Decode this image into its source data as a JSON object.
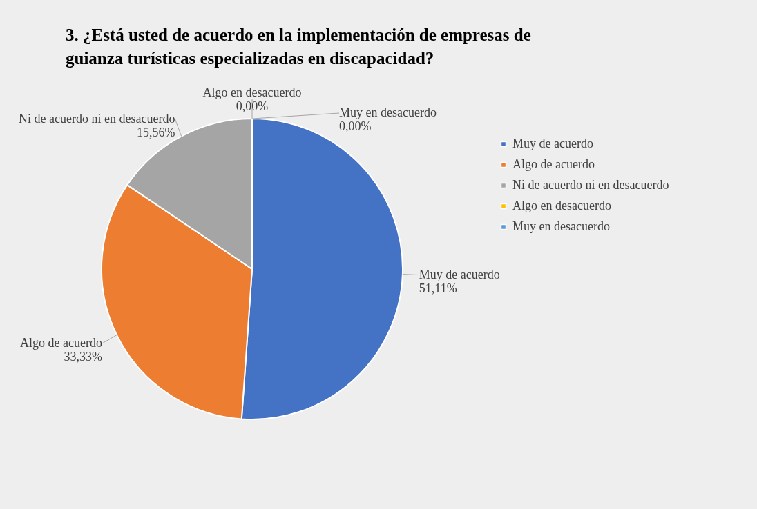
{
  "chart_data": {
    "type": "pie",
    "title": "3. ¿Está usted de acuerdo en la implementación de empresas de guianza turísticas especializadas en discapacidad?",
    "categories": [
      "Muy de acuerdo",
      "Algo de acuerdo",
      "Ni de acuerdo ni en desacuerdo",
      "Algo en desacuerdo",
      "Muy en desacuerdo"
    ],
    "values": [
      51.11,
      33.33,
      15.56,
      0,
      0
    ],
    "colors": [
      "#4472c4",
      "#ed7d31",
      "#a5a5a5",
      "#ffc000",
      "#5b9bd5"
    ],
    "value_labels": [
      "51,11%",
      "33,33%",
      "15,56%",
      "0,00%",
      "0,00%"
    ],
    "legend": "right"
  }
}
